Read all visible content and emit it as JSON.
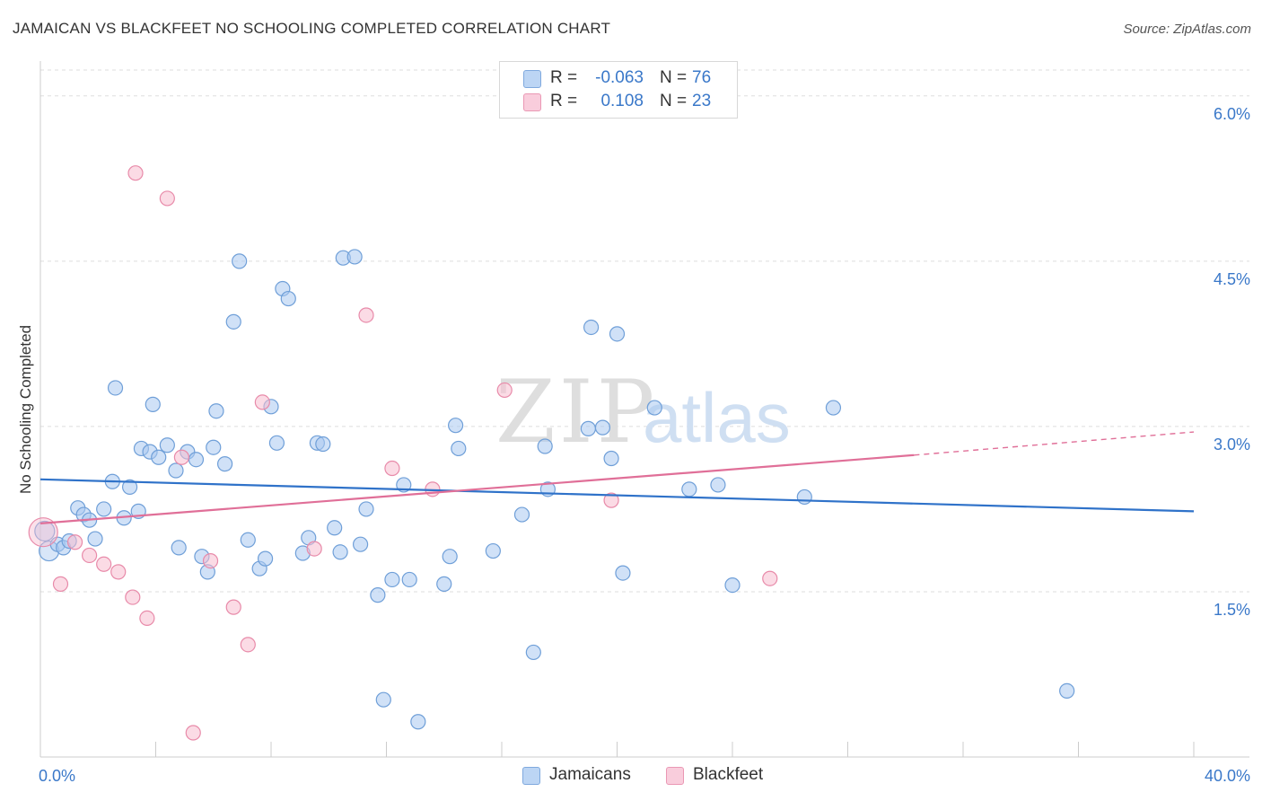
{
  "header": {
    "title": "JAMAICAN VS BLACKFEET NO SCHOOLING COMPLETED CORRELATION CHART",
    "source": "Source: ZipAtlas.com"
  },
  "legend": {
    "rows": [
      {
        "r_label": "R =",
        "r_value": "-0.063",
        "n_label": "N =",
        "n_value": "76"
      },
      {
        "r_label": "R =",
        "r_value": "0.108",
        "n_label": "N =",
        "n_value": "23"
      }
    ]
  },
  "bottom_legend": [
    "Jamaicans",
    "Blackfeet"
  ],
  "watermark": {
    "zip": "ZIP",
    "atlas": "atlas"
  },
  "colors": {
    "jamaicans_fill": "#a9c8f0",
    "jamaicans_stroke": "#6f9fd8",
    "jamaicans_line": "#2f72c9",
    "blackfeet_fill": "#f7bdd0",
    "blackfeet_stroke": "#e88aa9",
    "blackfeet_line": "#e06f98",
    "axis_label": "#3a78c9",
    "grid": "#dddddd"
  },
  "chart_data": {
    "type": "scatter",
    "title": "JAMAICAN VS BLACKFEET NO SCHOOLING COMPLETED CORRELATION CHART",
    "xlabel": "",
    "ylabel": "No Schooling Completed",
    "xlim": [
      0,
      40
    ],
    "ylim": [
      0,
      6.3
    ],
    "x_tick_labels": [
      "0.0%",
      "40.0%"
    ],
    "y_ticks": [
      1.5,
      3.0,
      4.5,
      6.0
    ],
    "y_tick_labels": [
      "1.5%",
      "3.0%",
      "4.5%",
      "6.0%"
    ],
    "grid": "horizontal dashed",
    "legend_placement": "top-center and bottom",
    "series": [
      {
        "name": "Jamaicans",
        "r": -0.063,
        "n": 76,
        "trend": {
          "x": [
            0,
            40
          ],
          "y": [
            2.52,
            2.23
          ]
        },
        "points": [
          [
            0.3,
            1.87
          ],
          [
            0.6,
            1.93
          ],
          [
            0.8,
            1.9
          ],
          [
            1.0,
            1.96
          ],
          [
            1.3,
            2.26
          ],
          [
            1.5,
            2.2
          ],
          [
            1.7,
            2.15
          ],
          [
            1.9,
            1.98
          ],
          [
            2.2,
            2.25
          ],
          [
            2.5,
            2.5
          ],
          [
            2.6,
            3.35
          ],
          [
            2.9,
            2.17
          ],
          [
            3.1,
            2.45
          ],
          [
            3.4,
            2.23
          ],
          [
            3.5,
            2.8
          ],
          [
            3.8,
            2.77
          ],
          [
            3.9,
            3.2
          ],
          [
            4.1,
            2.72
          ],
          [
            4.4,
            2.83
          ],
          [
            4.7,
            2.6
          ],
          [
            4.8,
            1.9
          ],
          [
            5.1,
            2.77
          ],
          [
            5.4,
            2.7
          ],
          [
            5.6,
            1.82
          ],
          [
            5.8,
            1.68
          ],
          [
            6.0,
            2.81
          ],
          [
            6.1,
            3.14
          ],
          [
            6.4,
            2.66
          ],
          [
            6.7,
            3.95
          ],
          [
            6.9,
            4.5
          ],
          [
            7.2,
            1.97
          ],
          [
            7.6,
            1.71
          ],
          [
            7.8,
            1.8
          ],
          [
            8.0,
            3.18
          ],
          [
            8.2,
            2.85
          ],
          [
            8.4,
            4.25
          ],
          [
            8.6,
            4.16
          ],
          [
            9.1,
            1.85
          ],
          [
            9.3,
            1.99
          ],
          [
            9.6,
            2.85
          ],
          [
            9.8,
            2.84
          ],
          [
            10.2,
            2.08
          ],
          [
            10.4,
            1.86
          ],
          [
            10.5,
            4.53
          ],
          [
            10.9,
            4.54
          ],
          [
            11.1,
            1.93
          ],
          [
            11.3,
            2.25
          ],
          [
            11.7,
            1.47
          ],
          [
            11.9,
            0.52
          ],
          [
            12.2,
            1.61
          ],
          [
            12.6,
            2.47
          ],
          [
            12.8,
            1.61
          ],
          [
            13.1,
            0.32
          ],
          [
            14.0,
            1.57
          ],
          [
            14.2,
            1.82
          ],
          [
            14.4,
            3.01
          ],
          [
            14.5,
            2.8
          ],
          [
            15.7,
            1.87
          ],
          [
            16.7,
            2.2
          ],
          [
            17.1,
            0.95
          ],
          [
            17.5,
            2.82
          ],
          [
            17.6,
            2.43
          ],
          [
            19.0,
            2.98
          ],
          [
            19.1,
            3.9
          ],
          [
            19.5,
            2.99
          ],
          [
            19.8,
            2.71
          ],
          [
            20.0,
            3.84
          ],
          [
            20.2,
            1.67
          ],
          [
            21.3,
            3.17
          ],
          [
            22.5,
            2.43
          ],
          [
            23.5,
            2.47
          ],
          [
            24.0,
            1.56
          ],
          [
            26.5,
            2.36
          ],
          [
            27.5,
            3.17
          ],
          [
            35.6,
            0.6
          ],
          [
            0.15,
            2.05
          ]
        ]
      },
      {
        "name": "Blackfeet",
        "r": 0.108,
        "n": 23,
        "trend": {
          "x": [
            0,
            30.3
          ],
          "y": [
            2.12,
            2.74
          ]
        },
        "trend_dashed": {
          "x": [
            30.3,
            40
          ],
          "y": [
            2.74,
            2.95
          ]
        },
        "points": [
          [
            0.1,
            2.04
          ],
          [
            0.7,
            1.57
          ],
          [
            1.2,
            1.95
          ],
          [
            1.7,
            1.83
          ],
          [
            2.2,
            1.75
          ],
          [
            2.7,
            1.68
          ],
          [
            3.2,
            1.45
          ],
          [
            3.3,
            5.3
          ],
          [
            3.7,
            1.26
          ],
          [
            4.4,
            5.07
          ],
          [
            4.9,
            2.72
          ],
          [
            5.3,
            0.22
          ],
          [
            5.9,
            1.78
          ],
          [
            6.7,
            1.36
          ],
          [
            7.2,
            1.02
          ],
          [
            7.7,
            3.22
          ],
          [
            9.5,
            1.89
          ],
          [
            11.3,
            4.01
          ],
          [
            12.2,
            2.62
          ],
          [
            13.6,
            2.43
          ],
          [
            16.1,
            3.33
          ],
          [
            19.8,
            2.33
          ],
          [
            25.3,
            1.62
          ]
        ]
      }
    ]
  }
}
